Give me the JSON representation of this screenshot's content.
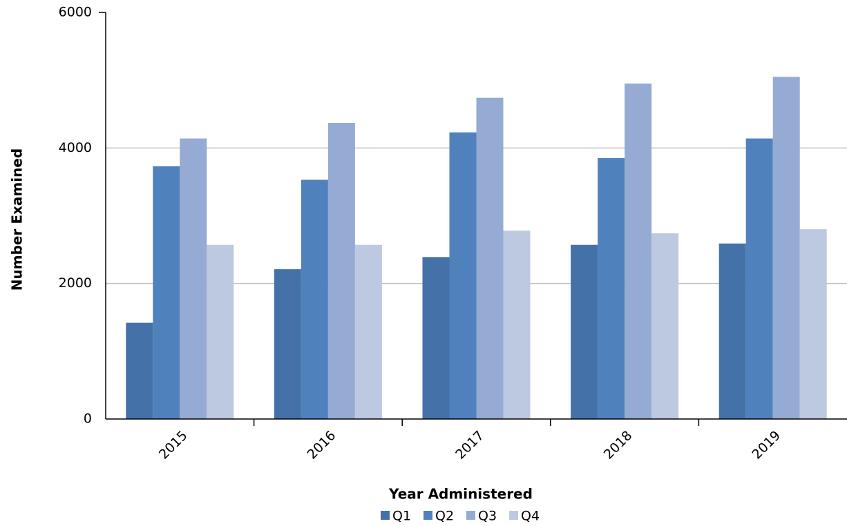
{
  "chart_data": {
    "type": "bar",
    "x_label": "Year Administered",
    "y_label": "Number Examined",
    "categories": [
      "2015",
      "2016",
      "2017",
      "2018",
      "2019"
    ],
    "series": [
      {
        "name": "Q1",
        "color": "#4472a8",
        "values": [
          1420,
          2210,
          2390,
          2570,
          2590
        ]
      },
      {
        "name": "Q2",
        "color": "#4f81bd",
        "values": [
          3730,
          3530,
          4230,
          3850,
          4140
        ]
      },
      {
        "name": "Q3",
        "color": "#95abd3",
        "values": [
          4140,
          4370,
          4740,
          4950,
          5050
        ]
      },
      {
        "name": "Q4",
        "color": "#bdc9e1",
        "values": [
          2570,
          2570,
          2780,
          2740,
          2800
        ]
      }
    ],
    "ylim": [
      0,
      6000
    ],
    "yticks": [
      0,
      2000,
      4000,
      6000
    ],
    "grid": true,
    "legend": "bottom"
  }
}
